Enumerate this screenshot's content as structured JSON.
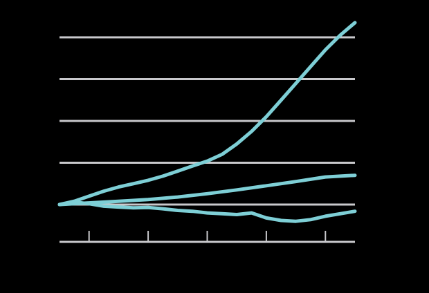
{
  "chart_data": {
    "type": "line",
    "title": "",
    "xlabel": "",
    "ylabel": "",
    "grid": true,
    "xlim": [
      0,
      100
    ],
    "ylim": [
      -1,
      5
    ],
    "y_gridlines": [
      0,
      1,
      2,
      3,
      4
    ],
    "x_ticks": [
      10,
      30,
      50,
      70,
      90
    ],
    "series": [
      {
        "color": "#7ecfd6",
        "x": [
          0,
          5,
          10,
          15,
          20,
          25,
          30,
          35,
          40,
          45,
          50,
          55,
          60,
          65,
          70,
          75,
          80,
          85,
          90,
          95,
          100
        ],
        "y": [
          0,
          0.08,
          0.2,
          0.32,
          0.42,
          0.5,
          0.58,
          0.68,
          0.8,
          0.92,
          1.04,
          1.2,
          1.45,
          1.75,
          2.1,
          2.5,
          2.9,
          3.3,
          3.7,
          4.05,
          4.35
        ]
      },
      {
        "color": "#7ecfd6",
        "x": [
          0,
          10,
          20,
          30,
          40,
          50,
          60,
          70,
          80,
          90,
          100
        ],
        "y": [
          0,
          0.04,
          0.08,
          0.12,
          0.18,
          0.26,
          0.35,
          0.45,
          0.55,
          0.66,
          0.7
        ]
      },
      {
        "color": "#7ecfd6",
        "x": [
          0,
          5,
          10,
          15,
          20,
          25,
          30,
          35,
          40,
          45,
          50,
          55,
          60,
          65,
          70,
          75,
          80,
          85,
          90,
          95,
          100
        ],
        "y": [
          0,
          0.06,
          0.02,
          -0.04,
          -0.06,
          -0.08,
          -0.07,
          -0.1,
          -0.14,
          -0.16,
          -0.2,
          -0.22,
          -0.24,
          -0.2,
          -0.32,
          -0.38,
          -0.4,
          -0.36,
          -0.28,
          -0.22,
          -0.16
        ]
      }
    ]
  }
}
